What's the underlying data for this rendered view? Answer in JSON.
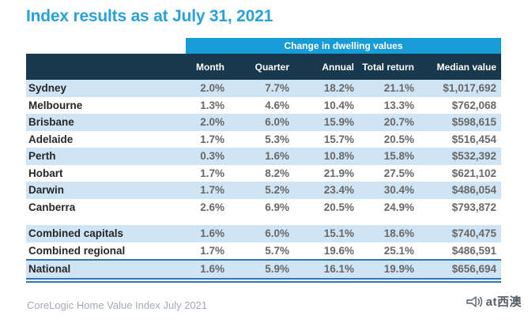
{
  "title": "Index results as at July 31, 2021",
  "table": {
    "band_label": "Change in dwelling values",
    "columns": [
      "Month",
      "Quarter",
      "Annual",
      "Total return",
      "Median value"
    ],
    "rows": [
      {
        "name": "Sydney",
        "values": [
          "2.0%",
          "7.7%",
          "18.2%",
          "21.1%",
          "$1,017,692"
        ]
      },
      {
        "name": "Melbourne",
        "values": [
          "1.3%",
          "4.6%",
          "10.4%",
          "13.3%",
          "$762,068"
        ]
      },
      {
        "name": "Brisbane",
        "values": [
          "2.0%",
          "6.0%",
          "15.9%",
          "20.7%",
          "$598,615"
        ]
      },
      {
        "name": "Adelaide",
        "values": [
          "1.7%",
          "5.3%",
          "15.7%",
          "20.5%",
          "$516,454"
        ]
      },
      {
        "name": "Perth",
        "values": [
          "0.3%",
          "1.6%",
          "10.8%",
          "15.8%",
          "$532,392"
        ]
      },
      {
        "name": "Hobart",
        "values": [
          "1.7%",
          "8.2%",
          "21.9%",
          "27.5%",
          "$621,102"
        ]
      },
      {
        "name": "Darwin",
        "values": [
          "1.7%",
          "5.2%",
          "23.4%",
          "30.4%",
          "$486,054"
        ]
      },
      {
        "name": "Canberra",
        "values": [
          "2.6%",
          "6.9%",
          "20.5%",
          "24.9%",
          "$793,872"
        ]
      },
      {
        "name": "Combined capitals",
        "values": [
          "1.6%",
          "6.0%",
          "15.1%",
          "18.6%",
          "$740,475"
        ],
        "spacer_before": true
      },
      {
        "name": "Combined regional",
        "values": [
          "1.7%",
          "5.7%",
          "19.6%",
          "25.1%",
          "$486,591"
        ]
      },
      {
        "name": "National",
        "values": [
          "1.6%",
          "5.9%",
          "16.1%",
          "19.9%",
          "$656,694"
        ],
        "style": "total"
      }
    ]
  },
  "chart_data": {
    "type": "table",
    "title": "Index results as at July 31, 2021",
    "group_header": "Change in dwelling values",
    "columns": [
      "Month",
      "Quarter",
      "Annual",
      "Total return",
      "Median value"
    ],
    "rows": [
      [
        "Sydney",
        "2.0%",
        "7.7%",
        "18.2%",
        "21.1%",
        "$1,017,692"
      ],
      [
        "Melbourne",
        "1.3%",
        "4.6%",
        "10.4%",
        "13.3%",
        "$762,068"
      ],
      [
        "Brisbane",
        "2.0%",
        "6.0%",
        "15.9%",
        "20.7%",
        "$598,615"
      ],
      [
        "Adelaide",
        "1.7%",
        "5.3%",
        "15.7%",
        "20.5%",
        "$516,454"
      ],
      [
        "Perth",
        "0.3%",
        "1.6%",
        "10.8%",
        "15.8%",
        "$532,392"
      ],
      [
        "Hobart",
        "1.7%",
        "8.2%",
        "21.9%",
        "27.5%",
        "$621,102"
      ],
      [
        "Darwin",
        "1.7%",
        "5.2%",
        "23.4%",
        "30.4%",
        "$486,054"
      ],
      [
        "Canberra",
        "2.6%",
        "6.9%",
        "20.5%",
        "24.9%",
        "$793,872"
      ],
      [
        "Combined capitals",
        "1.6%",
        "6.0%",
        "15.1%",
        "18.6%",
        "$740,475"
      ],
      [
        "Combined regional",
        "1.7%",
        "5.7%",
        "19.6%",
        "25.1%",
        "$486,591"
      ],
      [
        "National",
        "1.6%",
        "5.9%",
        "16.1%",
        "19.9%",
        "$656,694"
      ]
    ]
  },
  "footer": "CoreLogic Home Value Index July 2021",
  "watermark": {
    "text": "at西澳",
    "icon": "megaphone-icon"
  },
  "colors": {
    "title_blue": "#29a0dc",
    "band_cyan": "#189cd8",
    "header_navy": "#17384d",
    "row_shade_blue": "#cfe4f4",
    "rule_blue": "#2e75b5",
    "label_text": "#272727",
    "value_text": "#686868",
    "footer_gray": "#a5aab0"
  }
}
